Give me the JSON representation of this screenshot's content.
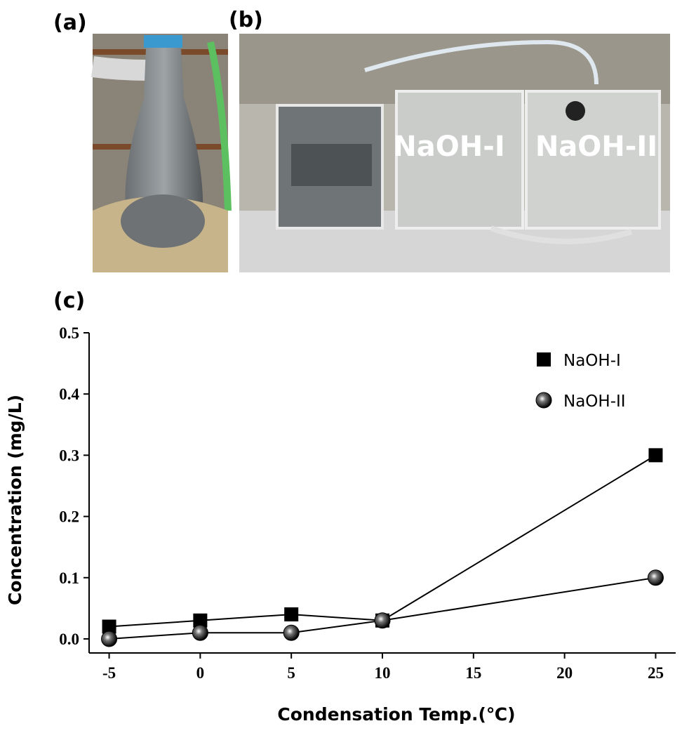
{
  "panel_labels": [
    "(a)",
    "(b)",
    "(c)"
  ],
  "photo_labels": [
    "NaOH-I",
    "NaOH-II"
  ],
  "chart_data": {
    "type": "line",
    "x_label": "Condensation Temp.(℃)",
    "y_label": "Concentration (mg/L)",
    "x": [
      -5,
      0,
      5,
      10,
      25
    ],
    "series": [
      {
        "name": "NaOH-I",
        "color": "#000000",
        "marker": "square",
        "values": [
          0.02,
          0.03,
          0.04,
          0.03,
          0.3
        ]
      },
      {
        "name": "NaOH-II",
        "color": "#000000",
        "marker": "circle",
        "values": [
          0.0,
          0.01,
          0.01,
          0.03,
          0.1
        ]
      }
    ],
    "xlim": [
      -6.1,
      26.1
    ],
    "ylim": [
      -0.023,
      0.5
    ],
    "xticks": [
      -5,
      0,
      5,
      10,
      15,
      20,
      25
    ],
    "yticks": [
      {
        "value": 0,
        "label": "0.0"
      },
      0.1,
      0.2,
      0.3,
      0.4,
      0.5
    ],
    "legend": "upper right"
  }
}
